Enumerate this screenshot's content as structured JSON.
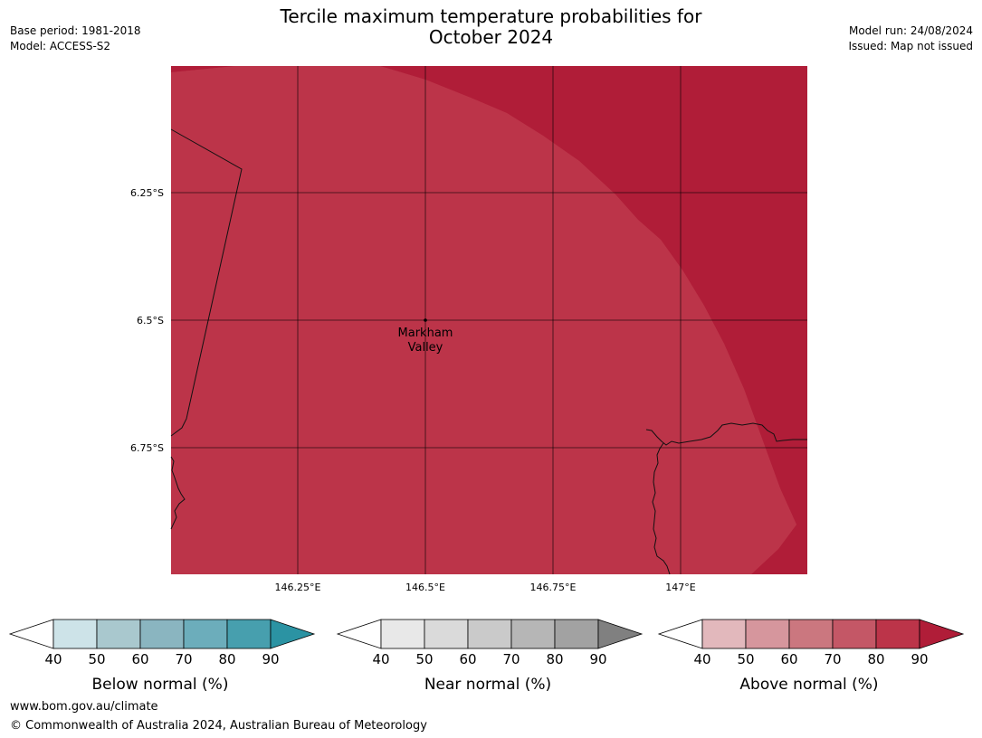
{
  "header": {
    "title_line1": "Tercile maximum temperature probabilities for",
    "title_line2": "October 2024",
    "base_period": "Base period: 1981-2018",
    "model": "Model: ACCESS-S2",
    "model_run": "Model run: 24/08/2024",
    "issued": "Issued: Map not issued"
  },
  "map": {
    "lat_labels": [
      "6.25°S",
      "6.5°S",
      "6.75°S"
    ],
    "lon_labels": [
      "146.25°E",
      "146.5°E",
      "146.75°E",
      "147°E"
    ],
    "location": {
      "name_line1": "Markham",
      "name_line2": "Valley",
      "lat": "6.5°S",
      "lon": "146.5°E"
    },
    "fill_colors": {
      "above_80_90": "#bc3449",
      "above_90": "#b01d38"
    }
  },
  "legends": [
    {
      "label": "Below normal (%)",
      "ticks": [
        "40",
        "50",
        "60",
        "70",
        "80",
        "90"
      ],
      "colors": [
        "#cde3e8",
        "#a9c8ce",
        "#8ab5c0",
        "#6cadbb",
        "#479fae"
      ],
      "extend_color": "#2b93a3"
    },
    {
      "label": "Near normal (%)",
      "ticks": [
        "40",
        "50",
        "60",
        "70",
        "80",
        "90"
      ],
      "colors": [
        "#e8e8e8",
        "#dadada",
        "#cacaca",
        "#b6b6b6",
        "#a2a2a2"
      ],
      "extend_color": "#808080"
    },
    {
      "label": "Above normal (%)",
      "ticks": [
        "40",
        "50",
        "60",
        "70",
        "80",
        "90"
      ],
      "colors": [
        "#e2b8bc",
        "#d6969d",
        "#cb777f",
        "#c45766",
        "#bc3449"
      ],
      "extend_color": "#b01d38"
    }
  ],
  "footer": {
    "url": "www.bom.gov.au/climate",
    "copyright": "© Commonwealth of Australia 2024, Australian Bureau of Meteorology"
  }
}
